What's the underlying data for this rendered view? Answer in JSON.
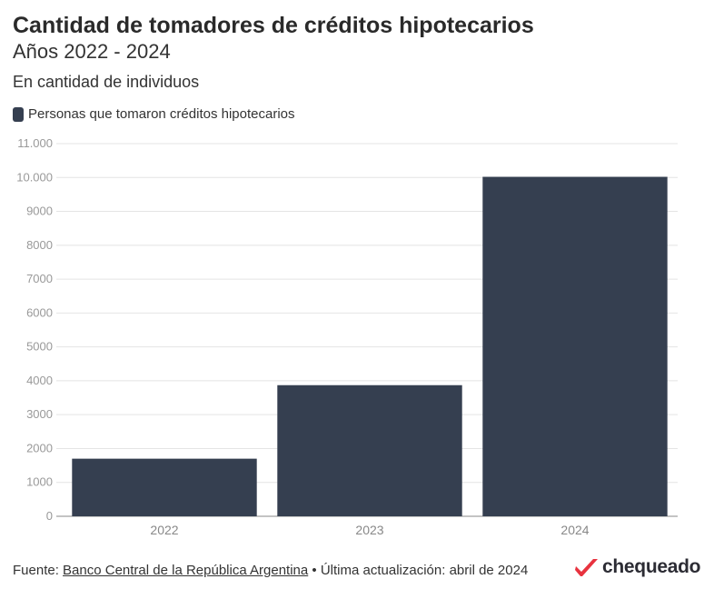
{
  "title": "Cantidad de tomadores de créditos hipotecarios",
  "subtitle": "Años 2022 - 2024",
  "unit": "En cantidad de individuos",
  "colors": {
    "bar": "#353f50",
    "grid": "#e4e4e4",
    "axis": "#8a8a8a",
    "brand_red": "#e8333f"
  },
  "footer": {
    "source_prefix": "Fuente:",
    "source_link": "Banco Central de la República Argentina",
    "separator": "•",
    "update": "Última actualización: abril de 2024"
  },
  "brand": {
    "name": "chequeado",
    "icon": "check-mark-icon"
  },
  "chart_data": {
    "type": "bar",
    "title": "Cantidad de tomadores de créditos hipotecarios",
    "subtitle": "Años 2022 - 2024",
    "categories": [
      "2022",
      "2023",
      "2024"
    ],
    "series": [
      {
        "name": "Personas que tomaron créditos hipotecarios",
        "values": [
          1700,
          3870,
          10020
        ]
      }
    ],
    "ylim": [
      0,
      11000
    ],
    "y_ticks": [
      0,
      1000,
      2000,
      3000,
      4000,
      5000,
      6000,
      7000,
      8000,
      9000,
      10000,
      11000
    ],
    "y_tick_labels": [
      "0",
      "1000",
      "2000",
      "3000",
      "4000",
      "5000",
      "6000",
      "7000",
      "8000",
      "9000",
      "10.000",
      "11.000"
    ],
    "grid": true,
    "legend": "top-left"
  }
}
